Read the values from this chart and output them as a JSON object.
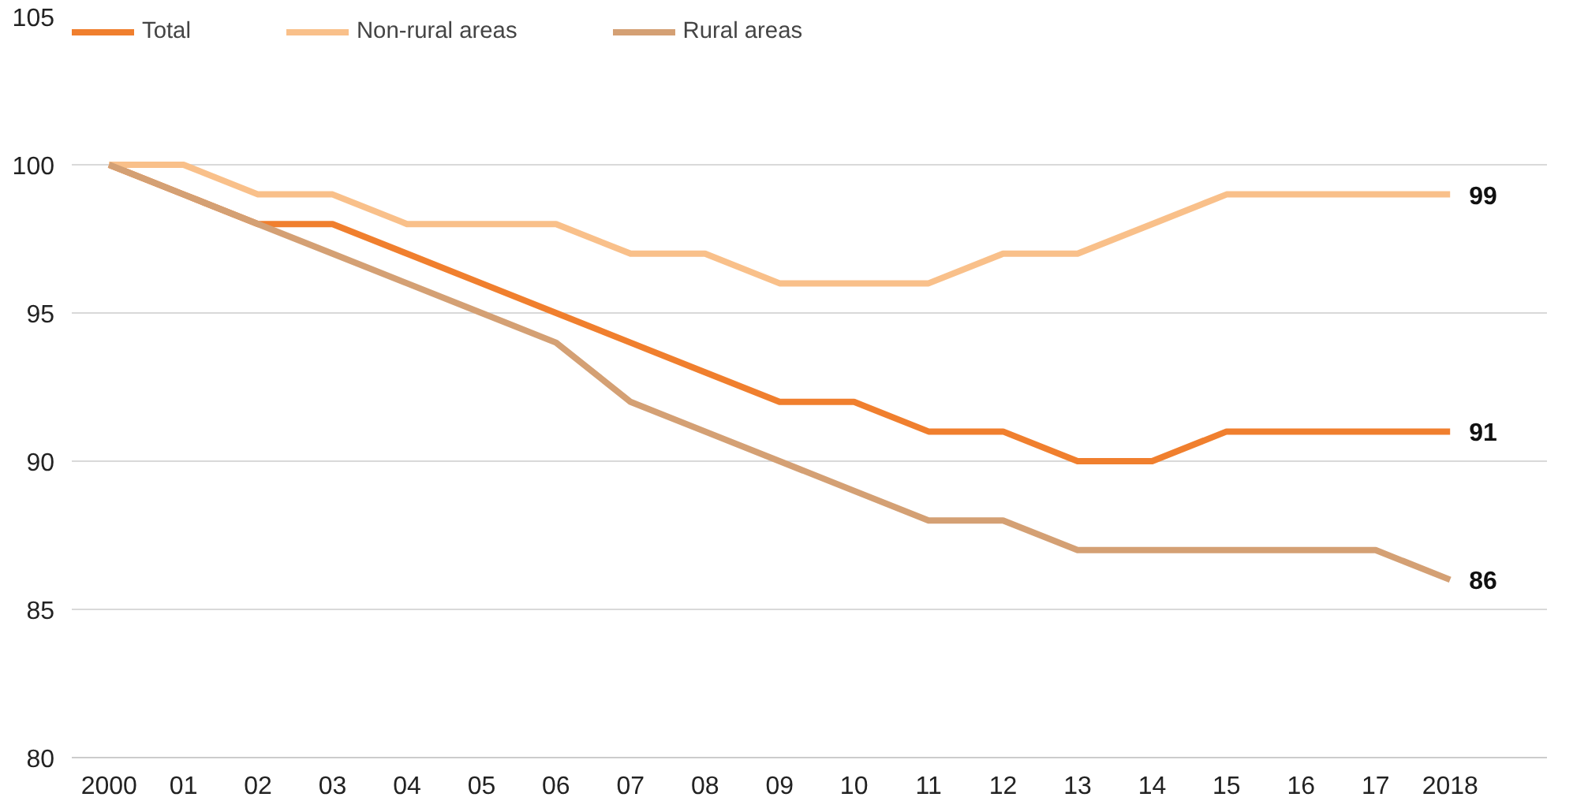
{
  "chart_data": {
    "type": "line",
    "categories": [
      "2000",
      "01",
      "02",
      "03",
      "04",
      "05",
      "06",
      "07",
      "08",
      "09",
      "10",
      "11",
      "12",
      "13",
      "14",
      "15",
      "16",
      "17",
      "2018"
    ],
    "series": [
      {
        "name": "Total",
        "color": "#f07f2e",
        "values": [
          100,
          99,
          98,
          98,
          97,
          96,
          95,
          94,
          93,
          92,
          92,
          91,
          91,
          90,
          90,
          91,
          91,
          91,
          91
        ],
        "value_labels": [
          null,
          null,
          null,
          null,
          null,
          null,
          null,
          null,
          null,
          null,
          null,
          null,
          null,
          null,
          null,
          null,
          null,
          null,
          "91"
        ]
      },
      {
        "name": "Non-rural areas",
        "color": "#f9c08a",
        "values": [
          100,
          100,
          99,
          99,
          98,
          98,
          98,
          97,
          97,
          96,
          96,
          96,
          97,
          97,
          98,
          99,
          99,
          99,
          99
        ],
        "value_labels": [
          null,
          null,
          null,
          null,
          null,
          null,
          null,
          null,
          null,
          null,
          null,
          null,
          null,
          null,
          null,
          null,
          null,
          null,
          "99"
        ]
      },
      {
        "name": "Rural areas",
        "color": "#d4a074",
        "values": [
          100,
          99,
          98,
          97,
          96,
          95,
          94,
          92,
          91,
          90,
          89,
          88,
          88,
          87,
          87,
          87,
          87,
          87,
          86
        ],
        "value_labels": [
          null,
          null,
          null,
          null,
          null,
          null,
          null,
          null,
          null,
          null,
          null,
          null,
          null,
          null,
          null,
          null,
          null,
          null,
          "86"
        ]
      }
    ],
    "ylim": [
      80,
      105
    ],
    "yticks": [
      80,
      85,
      90,
      95,
      100,
      105
    ],
    "grid": "y",
    "legend": "top left",
    "marker": "none",
    "line_style": "solid"
  }
}
